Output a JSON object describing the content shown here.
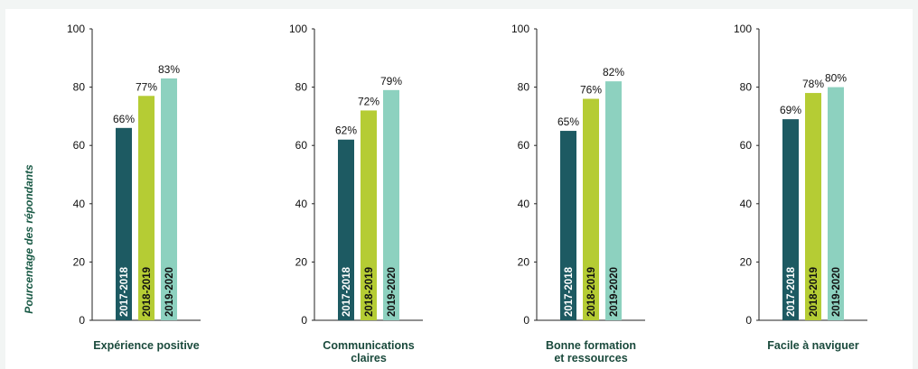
{
  "chart_data": {
    "type": "bar",
    "ylabel": "Pourcentage des répondants",
    "ylim": [
      0,
      100
    ],
    "yticks": [
      0,
      20,
      40,
      60,
      80,
      100
    ],
    "series": [
      {
        "name": "2017-2018",
        "color": "#1d5a62"
      },
      {
        "name": "2018-2019",
        "color": "#b5cc34"
      },
      {
        "name": "2019-2020",
        "color": "#8dd1bf"
      }
    ],
    "groups": [
      {
        "category_lines": [
          "Expérience positive"
        ],
        "values": [
          66,
          77,
          83
        ],
        "labels": [
          "66%",
          "77%",
          "83%"
        ]
      },
      {
        "category_lines": [
          "Communications",
          "claires"
        ],
        "values": [
          62,
          72,
          79
        ],
        "labels": [
          "62%",
          "72%",
          "79%"
        ]
      },
      {
        "category_lines": [
          "Bonne formation",
          "et ressources"
        ],
        "values": [
          65,
          76,
          82
        ],
        "labels": [
          "65%",
          "76%",
          "82%"
        ]
      },
      {
        "category_lines": [
          "Facile à naviguer"
        ],
        "values": [
          69,
          78,
          80
        ],
        "labels": [
          "69%",
          "78%",
          "80%"
        ]
      }
    ]
  }
}
